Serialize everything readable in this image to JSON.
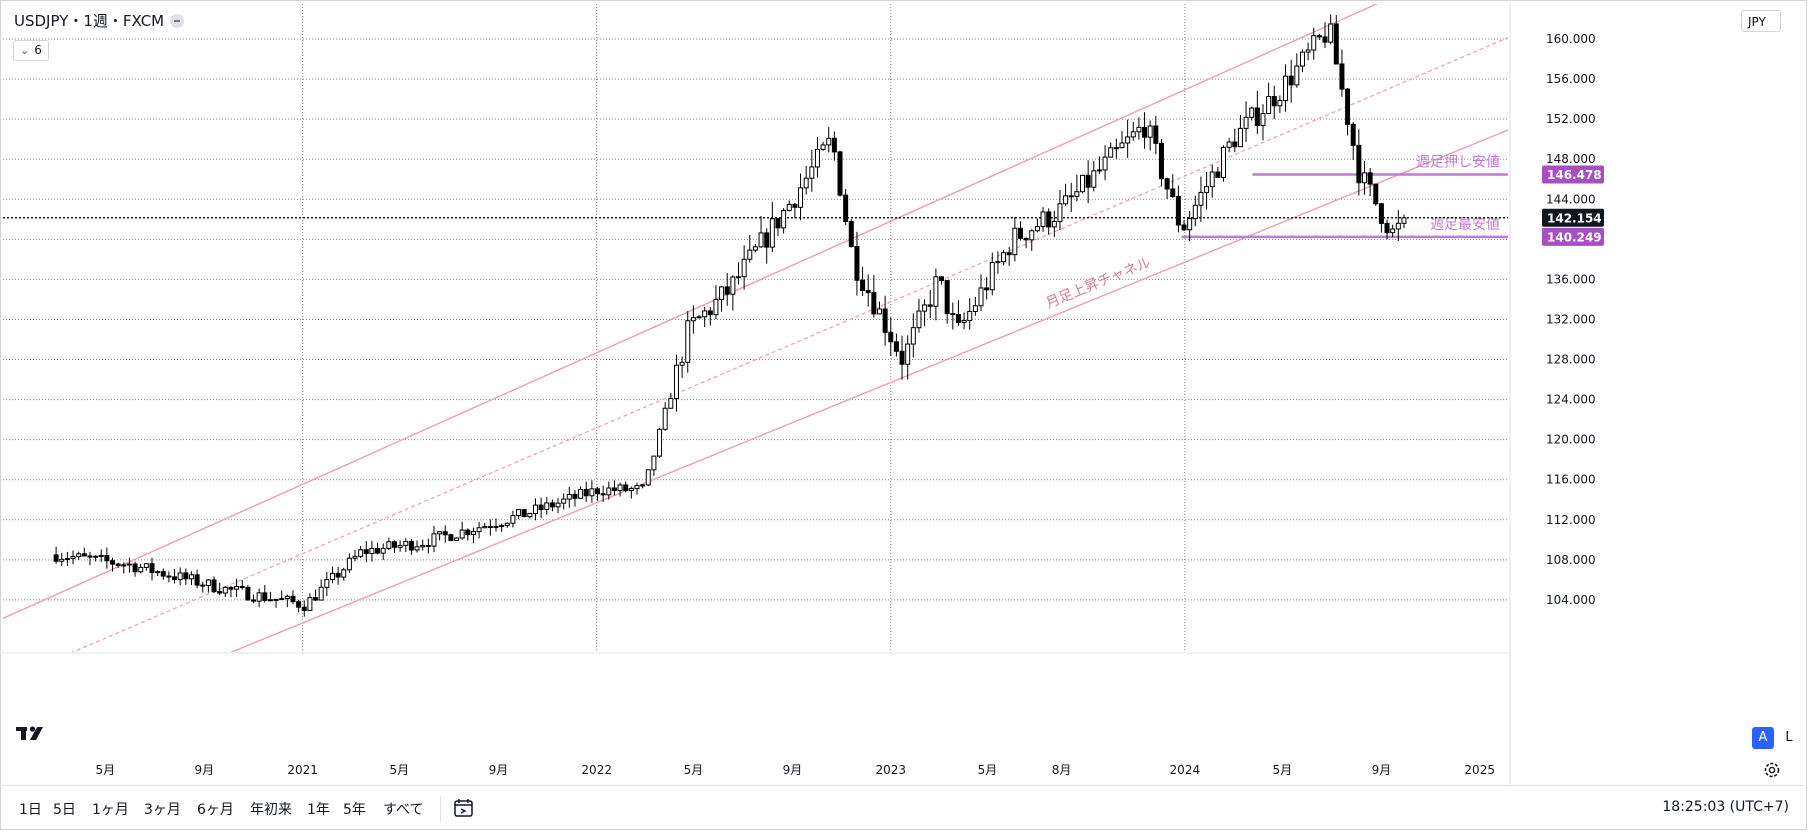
{
  "legend": {
    "title": "USDJPY・1週・FXCM",
    "indicator_value": "6"
  },
  "price_scale": {
    "currency": "JPY",
    "auto_label": "A",
    "log_label": "L"
  },
  "chart_data": {
    "type": "candlestick",
    "symbol": "USDJPY",
    "interval": "1週",
    "source": "FXCM",
    "ylim": [
      98.8,
      163.5
    ],
    "y_ticks": [
      104,
      108,
      112,
      116,
      120,
      124,
      128,
      132,
      136,
      140,
      144,
      148,
      152,
      156,
      160
    ],
    "y_tick_labels": [
      "104.000",
      "108.000",
      "112.000",
      "116.000",
      "120.000",
      "124.000",
      "128.000",
      "132.000",
      "136.000",
      "140.000",
      "144.000",
      "148.000",
      "152.000",
      "156.000",
      "160.000"
    ],
    "x_labels": [
      {
        "label": "5月",
        "date": "2020-05-01"
      },
      {
        "label": "9月",
        "date": "2020-09-01"
      },
      {
        "label": "2021",
        "date": "2021-01-01"
      },
      {
        "label": "5月",
        "date": "2021-05-01"
      },
      {
        "label": "9月",
        "date": "2021-09-01"
      },
      {
        "label": "2022",
        "date": "2022-01-01"
      },
      {
        "label": "5月",
        "date": "2022-05-01"
      },
      {
        "label": "9月",
        "date": "2022-09-01"
      },
      {
        "label": "2023",
        "date": "2023-01-01"
      },
      {
        "label": "5月",
        "date": "2023-05-01"
      },
      {
        "label": "8月",
        "date": "2023-08-01"
      },
      {
        "label": "2024",
        "date": "2024-01-01"
      },
      {
        "label": "5月",
        "date": "2024-05-01"
      },
      {
        "label": "9月",
        "date": "2024-09-01"
      },
      {
        "label": "2025",
        "date": "2025-01-01"
      }
    ],
    "year_gridlines": [
      "2021-01-01",
      "2022-01-01",
      "2023-01-01",
      "2024-01-01"
    ],
    "key_points": [
      {
        "date": "2020-03-01",
        "close": 108.5
      },
      {
        "date": "2020-06-01",
        "close": 107.5
      },
      {
        "date": "2020-10-01",
        "close": 105.0
      },
      {
        "date": "2021-01-04",
        "close": 103.5
      },
      {
        "date": "2021-03-15",
        "close": 108.8
      },
      {
        "date": "2021-06-01",
        "close": 109.8
      },
      {
        "date": "2021-10-01",
        "close": 112.5
      },
      {
        "date": "2022-01-03",
        "close": 115.0
      },
      {
        "date": "2022-03-01",
        "close": 115.0
      },
      {
        "date": "2022-04-25",
        "close": 131.0
      },
      {
        "date": "2022-06-15",
        "close": 135.0
      },
      {
        "date": "2022-09-01",
        "close": 144.0
      },
      {
        "date": "2022-10-20",
        "close": 150.0
      },
      {
        "date": "2022-11-15",
        "close": 138.0
      },
      {
        "date": "2023-01-16",
        "close": 128.0
      },
      {
        "date": "2023-03-01",
        "close": 136.0
      },
      {
        "date": "2023-03-24",
        "close": 130.5
      },
      {
        "date": "2023-06-01",
        "close": 140.0
      },
      {
        "date": "2023-08-01",
        "close": 143.0
      },
      {
        "date": "2023-11-13",
        "close": 151.5
      },
      {
        "date": "2023-12-28",
        "close": 141.0
      },
      {
        "date": "2024-03-01",
        "close": 150.0
      },
      {
        "date": "2024-04-29",
        "close": 155.0
      },
      {
        "date": "2024-06-28",
        "close": 161.0
      },
      {
        "date": "2024-08-05",
        "close": 146.5
      },
      {
        "date": "2024-09-16",
        "close": 140.5
      },
      {
        "date": "2024-10-04",
        "close": 142.154
      }
    ],
    "current_price": 142.154,
    "channel": {
      "label": "月足上昇チャネル",
      "lower": [
        {
          "date": "2020-10-05",
          "price": 98.8
        },
        {
          "date": "2025-03-01",
          "price": 151.7
        }
      ],
      "upper": [
        {
          "date": "2019-12-30",
          "price": 102.3
        },
        {
          "date": "2024-08-26",
          "price": 163.5
        }
      ],
      "mid_dashed": true
    },
    "horizontal_levels": [
      {
        "label": "週足押し安値",
        "price": 146.478,
        "from_date": "2024-03-25"
      },
      {
        "label": "週足最安値",
        "price": 140.249,
        "from_date": "2023-12-28"
      }
    ],
    "price_badges": [
      "146.478",
      "142.154",
      "140.249"
    ]
  },
  "bottom_bar": {
    "ranges": [
      "1日",
      "5日",
      "1ヶ月",
      "3ヶ月",
      "6ヶ月",
      "年初来",
      "1年",
      "5年",
      "すべて"
    ],
    "clock": "18:25:03 (UTC+7)"
  },
  "colors": {
    "channel": "#e8a0b2",
    "level": "#c07cd0",
    "level_badge": "#a74fc0",
    "current_badge": "#131722",
    "bull": "#ffffff",
    "bear": "#000000",
    "auto_button": "#2962ff"
  }
}
